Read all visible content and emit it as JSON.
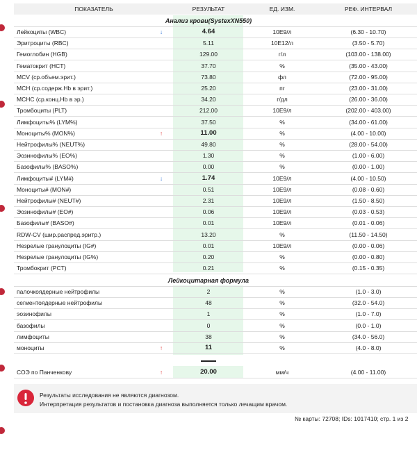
{
  "header": [
    "ПОКАЗАТЕЛЬ",
    "РЕЗУЛЬТАТ",
    "ЕД. ИЗМ.",
    "РЕФ. ИНТЕРВАЛ"
  ],
  "sections": [
    {
      "title": "Анализ крови(SystexXN550)",
      "rows": [
        {
          "name": "Лейкоциты (WBC)",
          "flag": "↓",
          "result": "4.64",
          "unit": "10E9/л",
          "ref": "(6.30 - 10.70)"
        },
        {
          "name": "Эритроциты (RBC)",
          "result": "5.11",
          "unit": "10E12/л",
          "ref": "(3.50 - 5.70)"
        },
        {
          "name": "Гемоглобин (HGB)",
          "result": "129.00",
          "unit": "г/л",
          "ref": "(103.00 - 138.00)"
        },
        {
          "name": "Гематокрит (HCT)",
          "result": "37.70",
          "unit": "%",
          "ref": "(35.00 - 43.00)"
        },
        {
          "name": "MCV (ср.объем.эрит.)",
          "result": "73.80",
          "unit": "фл",
          "ref": "(72.00 - 95.00)"
        },
        {
          "name": "MCH (ср.содерж.Hb в эрит.)",
          "result": "25.20",
          "unit": "пг",
          "ref": "(23.00 - 31.00)"
        },
        {
          "name": "MCHC (ср.конц.Hb в эр.)",
          "result": "34.20",
          "unit": "г/дл",
          "ref": "(26.00 - 36.00)"
        },
        {
          "name": "Тромбоциты (PLT)",
          "result": "212.00",
          "unit": "10E9/л",
          "ref": "(202.00 - 403.00)"
        },
        {
          "name": "Лимфоциты% (LYM%)",
          "result": "37.50",
          "unit": "%",
          "ref": "(34.00 - 61.00)"
        },
        {
          "name": "Моноциты% (MON%)",
          "flag": "↑",
          "result": "11.00",
          "unit": "%",
          "ref": "(4.00 - 10.00)"
        },
        {
          "name": "Нейтрофилы% (NEUT%)",
          "result": "49.80",
          "unit": "%",
          "ref": "(28.00 - 54.00)"
        },
        {
          "name": "Эозинофилы% (EO%)",
          "result": "1.30",
          "unit": "%",
          "ref": "(1.00 - 6.00)"
        },
        {
          "name": "Базофилы% (BASO%)",
          "result": "0.00",
          "unit": "%",
          "ref": "(0.00 - 1.00)"
        },
        {
          "name": "Лимфоциты# (LYM#)",
          "flag": "↓",
          "result": "1.74",
          "unit": "10E9/л",
          "ref": "(4.00 - 10.50)"
        },
        {
          "name": "Моноциты# (MON#)",
          "result": "0.51",
          "unit": "10E9/л",
          "ref": "(0.08 - 0.60)"
        },
        {
          "name": "Нейтрофилы# (NEUT#)",
          "result": "2.31",
          "unit": "10E9/л",
          "ref": "(1.50 - 8.50)"
        },
        {
          "name": "Эозинофилы# (EO#)",
          "result": "0.06",
          "unit": "10E9/л",
          "ref": "(0.03 - 0.53)"
        },
        {
          "name": "Базофилы# (BASO#)",
          "result": "0.01",
          "unit": "10E9/л",
          "ref": "(0.01 - 0.06)"
        },
        {
          "name": "RDW-CV (шир.распред.эритр.)",
          "result": "13.20",
          "unit": "%",
          "ref": "(11.50 - 14.50)"
        },
        {
          "name": "Незрелые гранулоциты (IG#)",
          "result": "0.01",
          "unit": "10E9/л",
          "ref": "(0.00 - 0.06)"
        },
        {
          "name": "Незрелые гранулоциты (IG%)",
          "result": "0.20",
          "unit": "%",
          "ref": "(0.00 - 0.80)"
        },
        {
          "name": "Тромбокрит (PCT)",
          "result": "0.21",
          "unit": "%",
          "ref": "(0.15 - 0.35)"
        }
      ]
    },
    {
      "title": "Лейкоцитарная формула",
      "rows": [
        {
          "name": "палочкоядерные нейтрофилы",
          "result": "2",
          "unit": "%",
          "ref": "(1.0 - 3.0)"
        },
        {
          "name": "сегментоядерные нейтрофилы",
          "result": "48",
          "unit": "%",
          "ref": "(32.0 - 54.0)"
        },
        {
          "name": "эозинофилы",
          "result": "1",
          "unit": "%",
          "ref": "(1.0 - 7.0)"
        },
        {
          "name": "базофилы",
          "result": "0",
          "unit": "%",
          "ref": "(0.0 - 1.0)"
        },
        {
          "name": "лимфоциты",
          "result": "38",
          "unit": "%",
          "ref": "(34.0 - 56.0)"
        },
        {
          "name": "моноциты",
          "flag": "↑",
          "result": "11",
          "unit": "%",
          "ref": "(4.0 - 8.0)"
        }
      ]
    }
  ],
  "esr": {
    "name": "СОЭ по Панченкову",
    "flag": "↑",
    "result": "20.00",
    "unit": "мм/ч",
    "ref": "(4.00 - 11.00)"
  },
  "note": [
    "Результаты исследования не являются диагнозом.",
    "Интерпретация результатов и постановка диагноза выполняется только лечащим врачом."
  ],
  "footer": "№ карты: 72708; IDs: 1017410; стр. 1 из 2"
}
